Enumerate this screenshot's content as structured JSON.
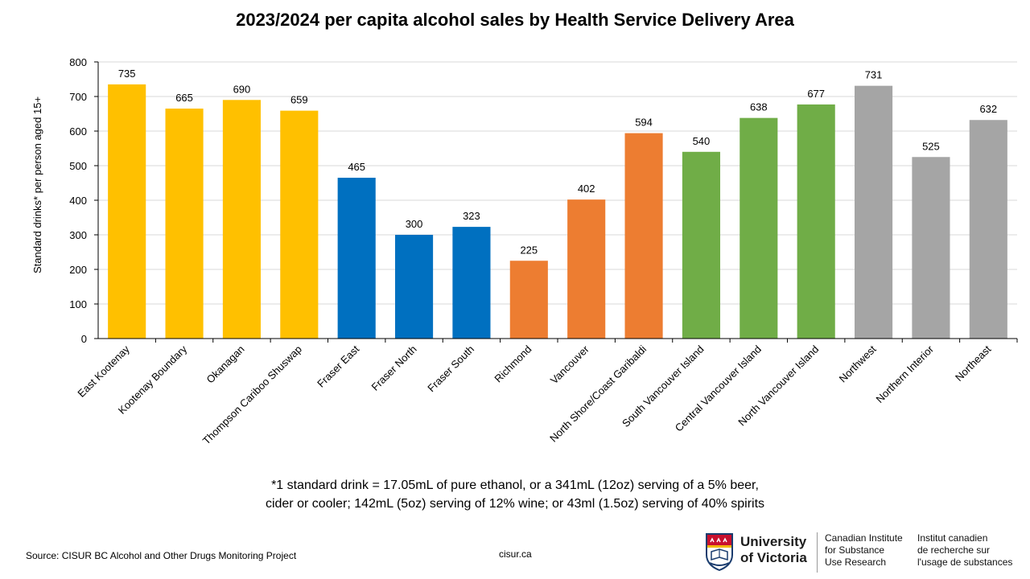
{
  "title": "2023/2024 per capita alcohol sales by Health Service Delivery Area",
  "chart_data": {
    "type": "bar",
    "title": "2023/2024 per capita alcohol sales by Health Service Delivery Area",
    "ylabel": "Standard drinks* per person aged 15+",
    "xlabel": "",
    "ylim": [
      0,
      800
    ],
    "yticks": [
      0,
      100,
      200,
      300,
      400,
      500,
      600,
      700,
      800
    ],
    "grid": true,
    "categories": [
      "East Kootenay",
      "Kootenay Boundary",
      "Okanagan",
      "Thompson Cariboo Shuswap",
      "Fraser East",
      "Fraser North",
      "Fraser South",
      "Richmond",
      "Vancouver",
      "North Shore/Coast Garibaldi",
      "South Vancouver Island",
      "Central Vancouver Island",
      "North Vancouver Island",
      "Northwest",
      "Northern Interior",
      "Northeast"
    ],
    "values": [
      735,
      665,
      690,
      659,
      465,
      300,
      323,
      225,
      402,
      594,
      540,
      638,
      677,
      731,
      525,
      632
    ],
    "colors": [
      "#FFC000",
      "#FFC000",
      "#FFC000",
      "#FFC000",
      "#0070C0",
      "#0070C0",
      "#0070C0",
      "#ED7D31",
      "#ED7D31",
      "#ED7D31",
      "#70AD47",
      "#70AD47",
      "#70AD47",
      "#A5A5A5",
      "#A5A5A5",
      "#A5A5A5"
    ]
  },
  "footnote": {
    "line1": "*1 standard drink = 17.05mL of pure ethanol, or a 341mL (12oz) serving of a 5% beer,",
    "line2": "cider or cooler; 142mL (5oz) serving of 12% wine; or 43ml (1.5oz) serving of 40% spirits"
  },
  "source": "Source: CISUR BC Alcohol and Other Drugs Monitoring Project",
  "site": "cisur.ca",
  "logo": {
    "university_line1": "University",
    "university_line2": "of Victoria",
    "institute_en": [
      "Canadian Institute",
      "for Substance",
      "Use Research"
    ],
    "institute_fr": [
      "Institut canadien",
      "de recherche sur",
      "l'usage de substances"
    ]
  }
}
